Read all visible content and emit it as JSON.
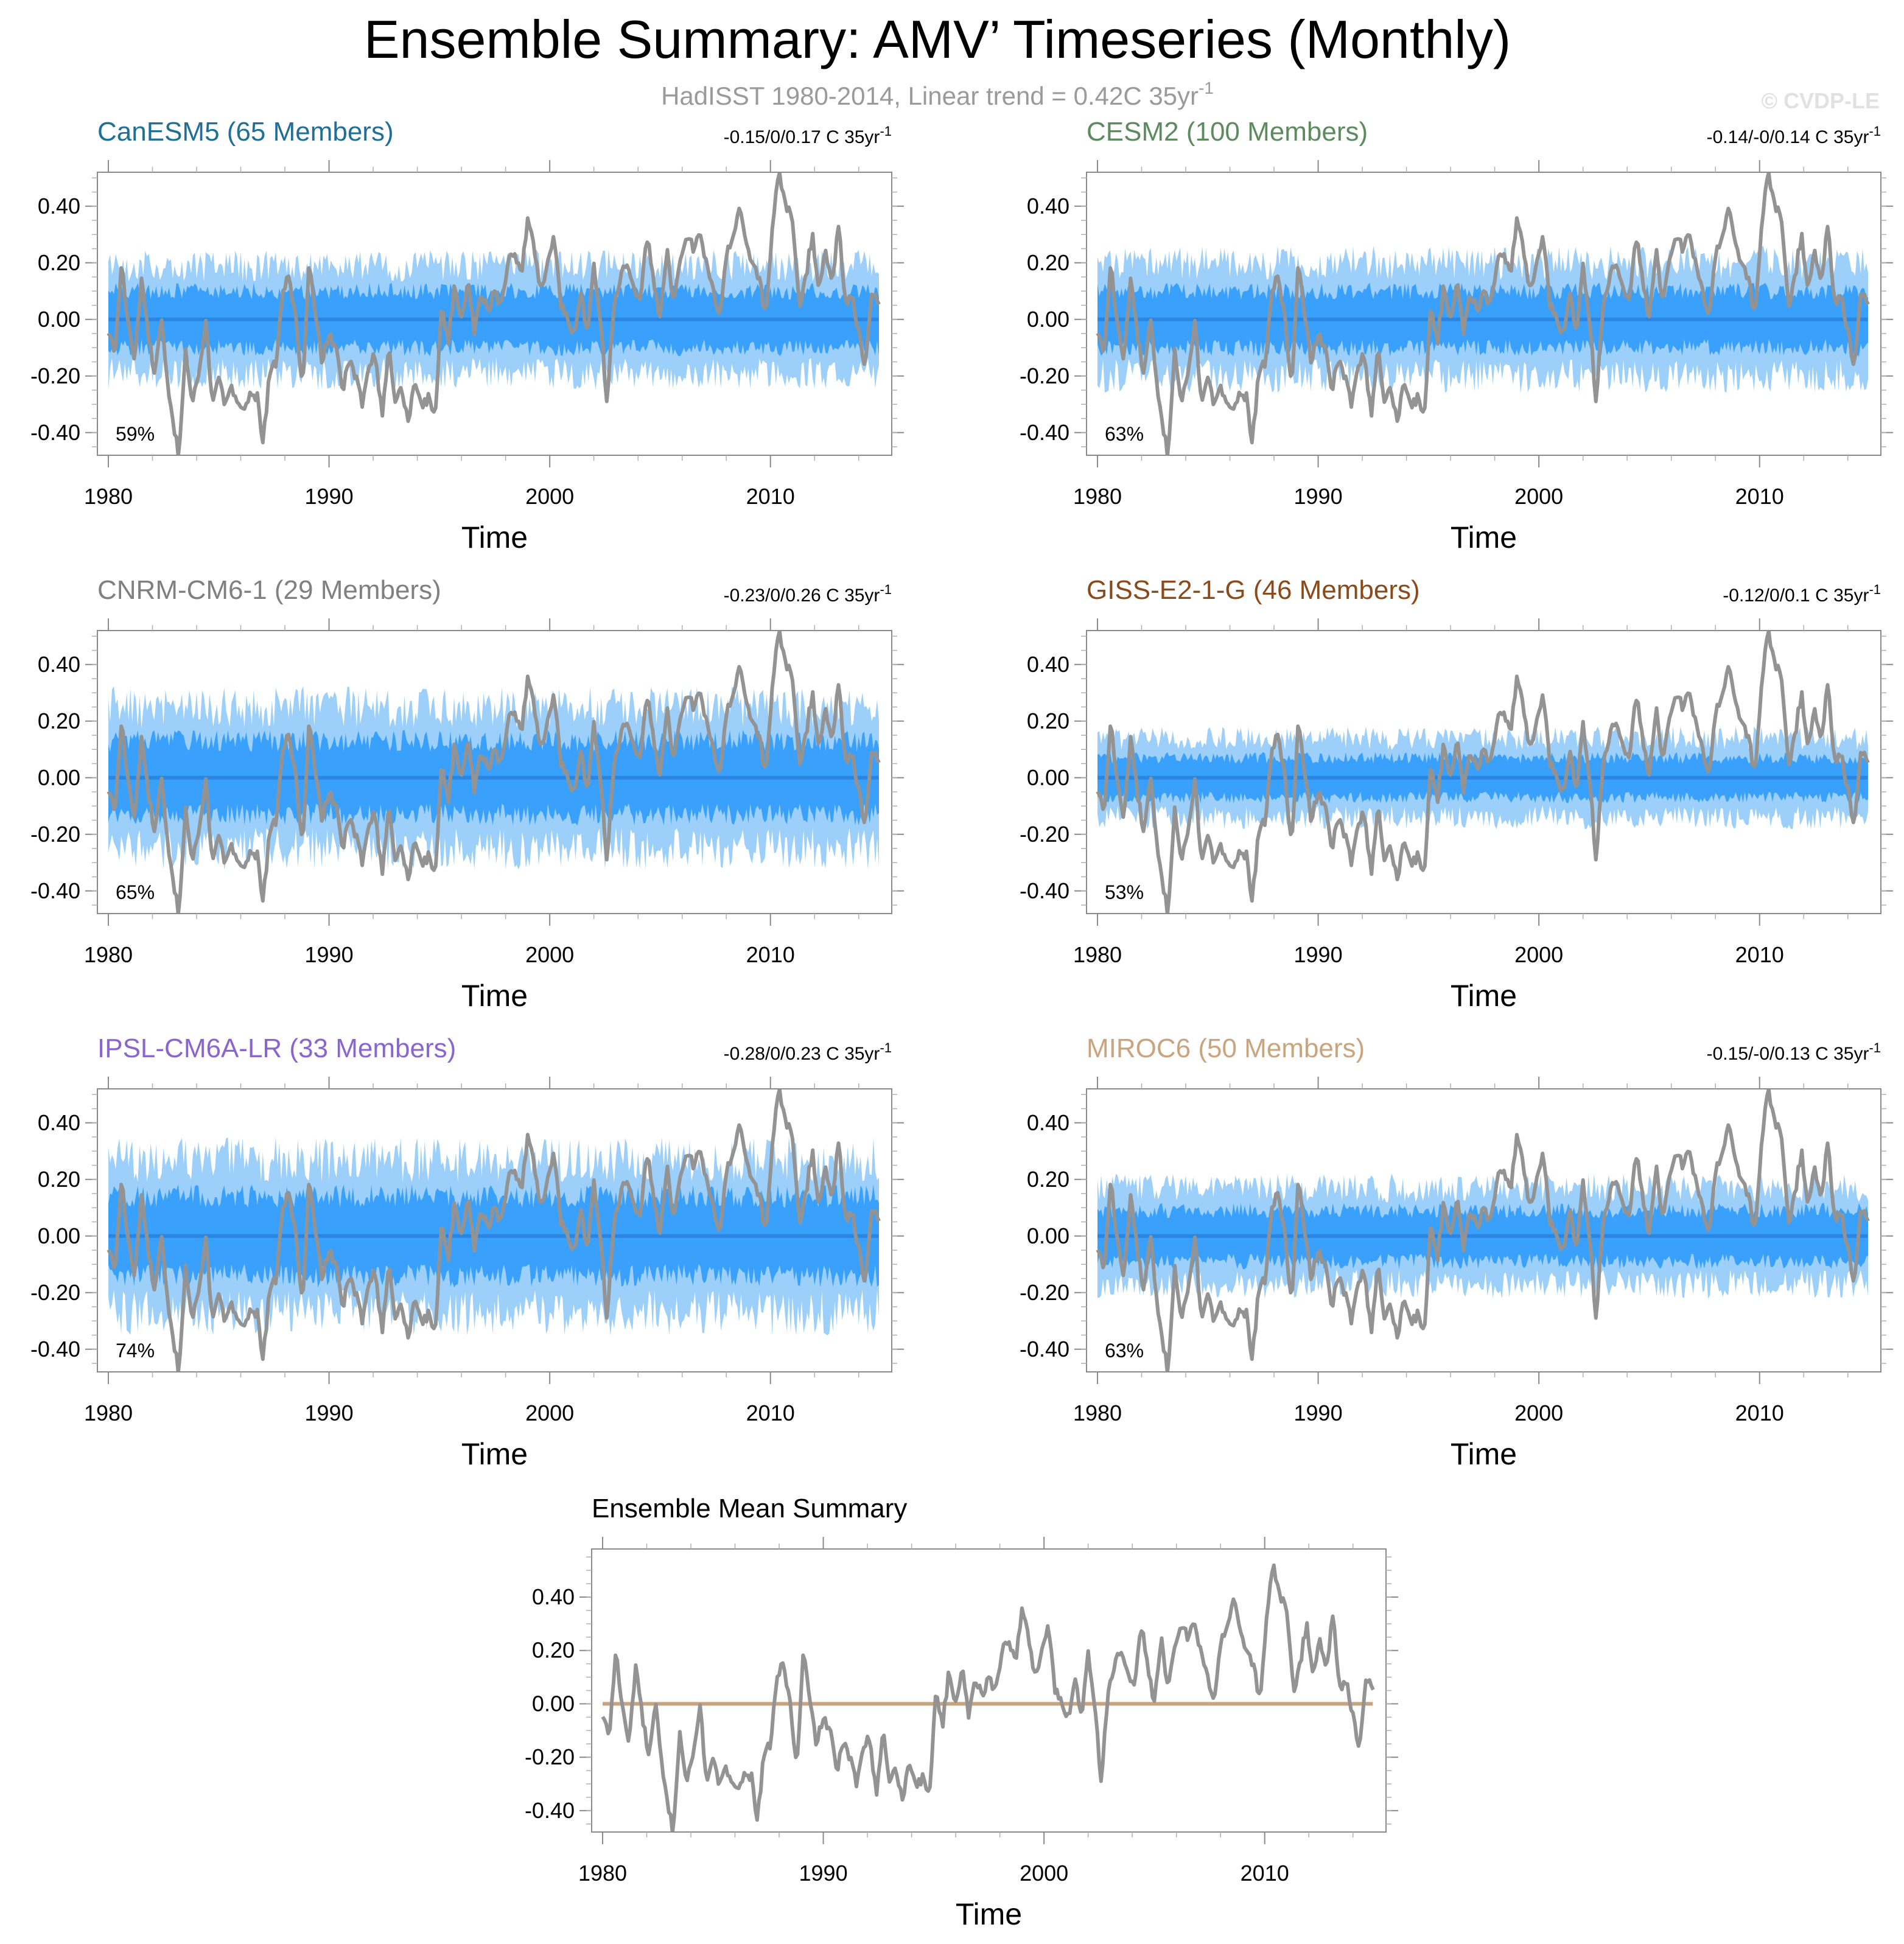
{
  "title": "Ensemble Summary: AMV’ Timeseries (Monthly)",
  "subtitle": "HadISST 1980-2014, Linear trend = 0.42C 35yr",
  "subtitle_sup": "-1",
  "credit": "© CVDP-LE",
  "colors": {
    "observed": "#939393",
    "spread_outer": "#9ccff9",
    "spread_inner": "#39a1fb",
    "ensemble_mean": "#2a86e0",
    "mean_summary_zero_line": "#c8a47e"
  },
  "chart_data": [
    {
      "type": "area",
      "title": "CanESM5 (65 Members)",
      "title_color": "#1f6f96",
      "trend_text": "-0.15/0/0.17 C 35yr",
      "trend_sup": "-1",
      "percent_label": "59%",
      "xlabel": "Time",
      "xlim": [
        1980,
        2015
      ],
      "ylim": [
        -0.48,
        0.52
      ],
      "x_ticks": [
        1980,
        1990,
        2000,
        2010
      ],
      "y_ticks": [
        "0.40",
        "0.20",
        "0.00",
        "-0.20",
        "-0.40"
      ],
      "series": [
        {
          "name": "ensemble 10-90% range",
          "half_width": 0.19
        },
        {
          "name": "ensemble 25-75% range",
          "half_width": 0.1
        },
        {
          "name": "ensemble mean",
          "value": 0.0
        },
        {
          "name": "HadISST observed AMV"
        }
      ]
    },
    {
      "type": "area",
      "title": "CESM2 (100 Members)",
      "title_color": "#5e8a60",
      "trend_text": "-0.14/-0/0.14 C 35yr",
      "trend_sup": "-1",
      "percent_label": "63%",
      "xlabel": "Time",
      "xlim": [
        1980,
        2015
      ],
      "ylim": [
        -0.48,
        0.52
      ],
      "x_ticks": [
        1980,
        1990,
        2000,
        2010
      ],
      "y_ticks": [
        "0.40",
        "0.20",
        "0.00",
        "-0.20",
        "-0.40"
      ],
      "series": [
        {
          "name": "ensemble 10-90% range",
          "half_width": 0.2
        },
        {
          "name": "ensemble 25-75% range",
          "half_width": 0.1
        },
        {
          "name": "ensemble mean",
          "value": 0.0
        },
        {
          "name": "HadISST observed AMV"
        }
      ]
    },
    {
      "type": "area",
      "title": "CNRM-CM6-1 (29 Members)",
      "title_color": "#808080",
      "trend_text": "-0.23/0/0.26 C 35yr",
      "trend_sup": "-1",
      "percent_label": "65%",
      "xlabel": "Time",
      "xlim": [
        1980,
        2015
      ],
      "ylim": [
        -0.48,
        0.52
      ],
      "x_ticks": [
        1980,
        1990,
        2000,
        2010
      ],
      "y_ticks": [
        "0.40",
        "0.20",
        "0.00",
        "-0.20",
        "-0.40"
      ],
      "series": [
        {
          "name": "ensemble 10-90% range",
          "half_width": 0.25
        },
        {
          "name": "ensemble 25-75% range",
          "half_width": 0.13
        },
        {
          "name": "ensemble mean",
          "value": 0.0
        },
        {
          "name": "HadISST observed AMV"
        }
      ]
    },
    {
      "type": "area",
      "title": "GISS-E2-1-G (46 Members)",
      "title_color": "#8a4a1a",
      "trend_text": "-0.12/0/0.1 C 35yr",
      "trend_sup": "-1",
      "percent_label": "53%",
      "xlabel": "Time",
      "xlim": [
        1980,
        2015
      ],
      "ylim": [
        -0.48,
        0.52
      ],
      "x_ticks": [
        1980,
        1990,
        2000,
        2010
      ],
      "y_ticks": [
        "0.40",
        "0.20",
        "0.00",
        "-0.20",
        "-0.40"
      ],
      "series": [
        {
          "name": "ensemble 10-90% range",
          "half_width": 0.14
        },
        {
          "name": "ensemble 25-75% range",
          "half_width": 0.07
        },
        {
          "name": "ensemble mean",
          "value": 0.0
        },
        {
          "name": "HadISST observed AMV"
        }
      ]
    },
    {
      "type": "area",
      "title": "IPSL-CM6A-LR (33 Members)",
      "title_color": "#8a65cf",
      "trend_text": "-0.28/0/0.23 C 35yr",
      "trend_sup": "-1",
      "percent_label": "74%",
      "xlabel": "Time",
      "xlim": [
        1980,
        2015
      ],
      "ylim": [
        -0.48,
        0.52
      ],
      "x_ticks": [
        1980,
        1990,
        2000,
        2010
      ],
      "y_ticks": [
        "0.40",
        "0.20",
        "0.00",
        "-0.20",
        "-0.40"
      ],
      "series": [
        {
          "name": "ensemble 10-90% range",
          "half_width": 0.27
        },
        {
          "name": "ensemble 25-75% range",
          "half_width": 0.14
        },
        {
          "name": "ensemble mean",
          "value": 0.0
        },
        {
          "name": "HadISST observed AMV"
        }
      ]
    },
    {
      "type": "area",
      "title": "MIROC6 (50 Members)",
      "title_color": "#c9a47e",
      "trend_text": "-0.15/-0/0.13 C 35yr",
      "trend_sup": "-1",
      "percent_label": "63%",
      "xlabel": "Time",
      "xlim": [
        1980,
        2015
      ],
      "ylim": [
        -0.48,
        0.52
      ],
      "x_ticks": [
        1980,
        1990,
        2000,
        2010
      ],
      "y_ticks": [
        "0.40",
        "0.20",
        "0.00",
        "-0.20",
        "-0.40"
      ],
      "series": [
        {
          "name": "ensemble 10-90% range",
          "half_width": 0.17
        },
        {
          "name": "ensemble 25-75% range",
          "half_width": 0.09
        },
        {
          "name": "ensemble mean",
          "value": 0.0
        },
        {
          "name": "HadISST observed AMV"
        }
      ]
    },
    {
      "type": "line",
      "title": "Ensemble Mean Summary",
      "title_color": "#000000",
      "xlabel": "Time",
      "xlim": [
        1980,
        2015
      ],
      "ylim": [
        -0.48,
        0.58
      ],
      "x_ticks": [
        1980,
        1990,
        2000,
        2010
      ],
      "y_ticks": [
        "0.40",
        "0.20",
        "0.00",
        "-0.20",
        "-0.40"
      ],
      "series": [
        {
          "name": "ensemble means",
          "value": 0.0
        },
        {
          "name": "HadISST observed AMV"
        }
      ]
    }
  ],
  "observed_anchor_points": {
    "x": [
      1980.0,
      1980.3,
      1980.6,
      1980.9,
      1981.2,
      1981.5,
      1981.8,
      1982.1,
      1982.4,
      1982.7,
      1982.9,
      1983.2,
      1983.5,
      1983.8,
      1984.1,
      1984.4,
      1984.7,
      1985.0,
      1985.3,
      1985.6,
      1985.9,
      1986.2,
      1986.5,
      1986.8,
      1987.0,
      1987.3,
      1987.6,
      1987.9,
      1988.2,
      1988.5,
      1988.8,
      1989.1,
      1989.4,
      1989.7,
      1990.0,
      1990.3,
      1990.6,
      1990.9,
      1991.2,
      1991.5,
      1991.8,
      1992.1,
      1992.4,
      1992.7,
      1993.0,
      1993.3,
      1993.6,
      1993.9,
      1994.2,
      1994.5,
      1994.8,
      1995.1,
      1995.4,
      1995.7,
      1996.0,
      1996.3,
      1996.6,
      1996.9,
      1997.2,
      1997.5,
      1997.8,
      1998.1,
      1998.4,
      1998.7,
      1999.0,
      1999.3,
      1999.6,
      1999.9,
      2000.2,
      2000.5,
      2000.8,
      2001.1,
      2001.4,
      2001.7,
      2002.0,
      2002.3,
      2002.6,
      2002.9,
      2003.2,
      2003.5,
      2003.8,
      2004.1,
      2004.4,
      2004.7,
      2005.0,
      2005.3,
      2005.6,
      2005.9,
      2006.2,
      2006.5,
      2006.8,
      2007.1,
      2007.4,
      2007.7,
      2008.0,
      2008.3,
      2008.6,
      2008.9,
      2009.2,
      2009.5,
      2009.8,
      2010.1,
      2010.4,
      2010.7,
      2011.0,
      2011.3,
      2011.6,
      2011.9,
      2012.2,
      2012.5,
      2012.8,
      2013.1,
      2013.4,
      2013.7,
      2014.0,
      2014.3,
      2014.6,
      2014.9
    ],
    "y": [
      -0.05,
      -0.12,
      0.2,
      -0.02,
      -0.15,
      0.15,
      -0.05,
      -0.2,
      0.0,
      -0.25,
      -0.35,
      -0.48,
      -0.1,
      -0.3,
      -0.2,
      0.0,
      -0.28,
      -0.22,
      -0.3,
      -0.25,
      -0.28,
      -0.32,
      -0.25,
      -0.28,
      -0.45,
      -0.2,
      -0.15,
      0.1,
      0.15,
      0.0,
      -0.25,
      0.2,
      0.0,
      -0.15,
      -0.05,
      -0.1,
      -0.25,
      -0.15,
      -0.2,
      -0.3,
      -0.15,
      -0.12,
      -0.35,
      -0.1,
      -0.28,
      -0.25,
      -0.35,
      -0.22,
      -0.3,
      -0.28,
      -0.35,
      0.05,
      -0.08,
      0.12,
      0.0,
      0.15,
      -0.05,
      0.1,
      0.02,
      0.1,
      0.05,
      0.2,
      0.25,
      0.15,
      0.35,
      0.25,
      0.1,
      0.2,
      0.3,
      0.05,
      0.0,
      -0.05,
      0.1,
      -0.05,
      0.2,
      0.0,
      -0.3,
      0.05,
      0.15,
      0.2,
      0.1,
      0.05,
      0.3,
      0.15,
      0.0,
      0.25,
      0.05,
      0.2,
      0.3,
      0.25,
      0.32,
      0.2,
      0.1,
      0.0,
      0.22,
      0.3,
      0.4,
      0.28,
      0.18,
      0.15,
      0.0,
      0.35,
      0.52,
      0.4,
      0.35,
      0.05,
      0.15,
      0.3,
      0.1,
      0.25,
      0.12,
      0.35,
      0.05,
      0.1,
      -0.05,
      -0.18,
      0.1,
      0.05
    ]
  }
}
